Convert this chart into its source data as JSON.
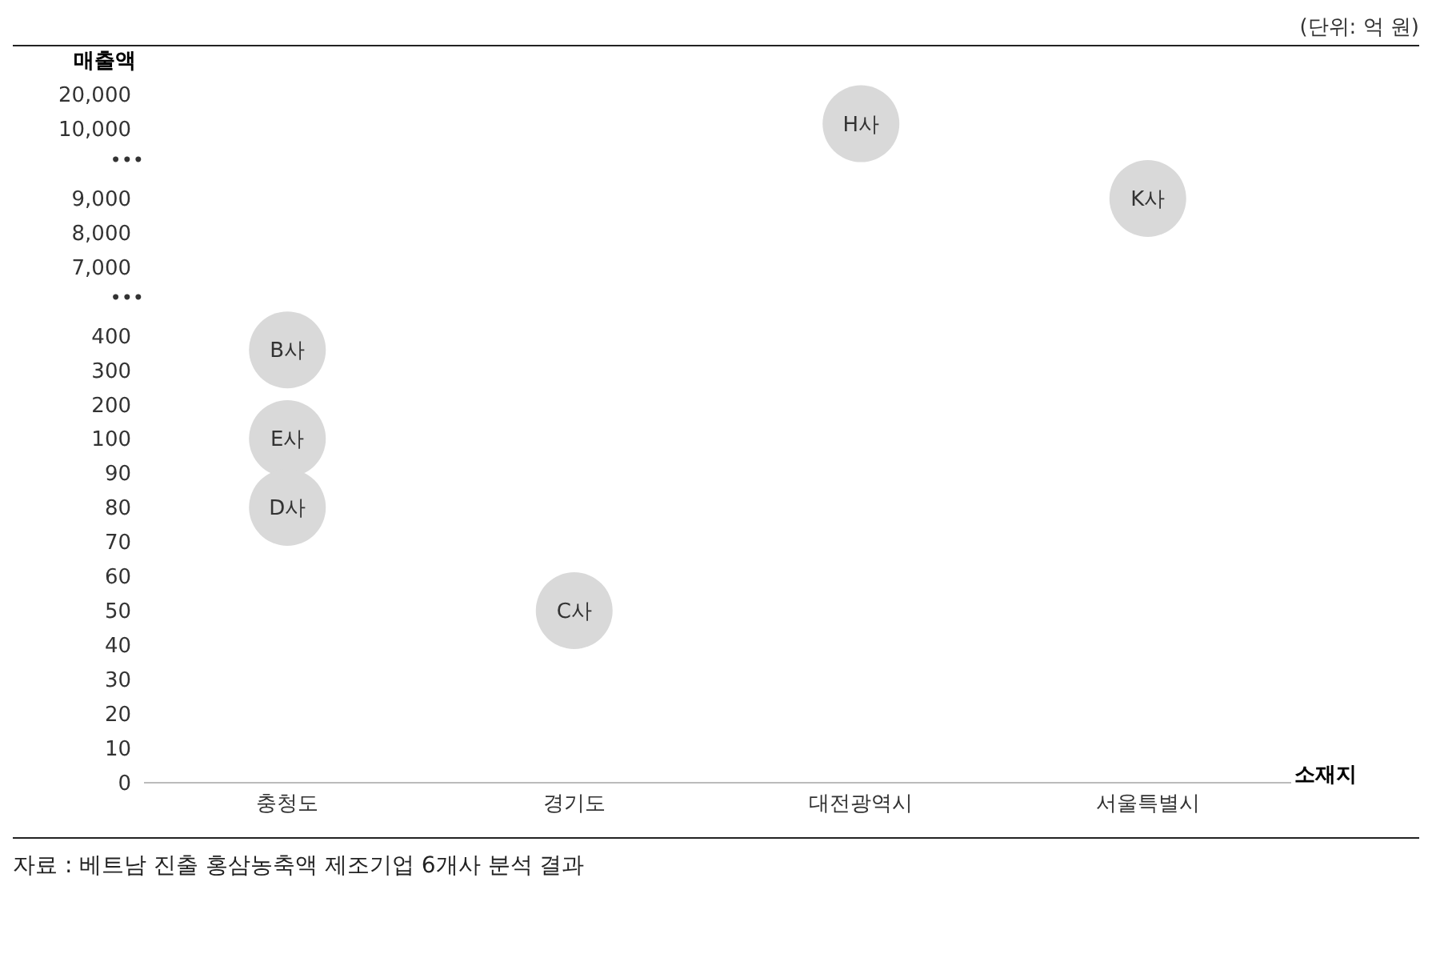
{
  "chart_data": [
    {
      "type": "scatter",
      "ylabel": "매출액",
      "categories": [
        "충청도",
        "경기도",
        "대전광역시",
        "서울특별시"
      ],
      "tick_labels": "y",
      "ylim": [
        10000,
        20000
      ],
      "yticks": [
        {
          "value": 10000,
          "label": "10,000"
        },
        {
          "value": 20000,
          "label": "20,000"
        }
      ],
      "marker": "circle",
      "grid": false,
      "legend": false,
      "annotations": [
        "(단위: 억 원)"
      ],
      "series": [
        {
          "color": "#d9d9d9",
          "x": [
            "대전광역시"
          ],
          "values": [
            11500
          ],
          "value_labels": [
            "H사"
          ]
        }
      ]
    },
    {
      "type": "scatter",
      "categories": [
        "충청도",
        "경기도",
        "대전광역시",
        "서울특별시"
      ],
      "tick_labels": "y",
      "ylim": [
        7000,
        9000
      ],
      "yticks": [
        {
          "value": 7000,
          "label": "7,000"
        },
        {
          "value": 8000,
          "label": "8,000"
        },
        {
          "value": 9000,
          "label": "9,000"
        }
      ],
      "marker": "circle",
      "grid": false,
      "legend": false,
      "annotations": [
        "•••"
      ],
      "series": [
        {
          "color": "#d9d9d9",
          "x": [
            "서울특별시"
          ],
          "values": [
            9000
          ],
          "value_labels": [
            "K사"
          ]
        }
      ]
    },
    {
      "type": "scatter",
      "categories": [
        "충청도",
        "경기도",
        "대전광역시",
        "서울특별시"
      ],
      "tick_labels": "y",
      "ylim": [
        200,
        400
      ],
      "yticks": [
        200,
        300,
        400
      ],
      "marker": "circle",
      "grid": false,
      "legend": false,
      "annotations": [
        "•••"
      ],
      "series": [
        {
          "color": "#d9d9d9",
          "x": [
            "충청도"
          ],
          "values": [
            360
          ],
          "value_labels": [
            "B사"
          ]
        }
      ]
    },
    {
      "type": "scatter",
      "xlabel": "소재지",
      "categories": [
        "충청도",
        "경기도",
        "대전광역시",
        "서울특별시"
      ],
      "ylim": [
        0,
        100
      ],
      "yticks": [
        0,
        10,
        20,
        30,
        40,
        50,
        60,
        70,
        80,
        90,
        100
      ],
      "marker": "circle",
      "grid": false,
      "legend": false,
      "annotations": [
        "자료 : 베트남 진출 홍삼농축액 제조기업 6개사 분석 결과"
      ],
      "series": [
        {
          "color": "#d9d9d9",
          "x": [
            "충청도",
            "충청도",
            "경기도"
          ],
          "values": [
            100,
            80,
            50
          ],
          "value_labels": [
            "E사",
            "D사",
            "C사"
          ]
        }
      ]
    }
  ]
}
